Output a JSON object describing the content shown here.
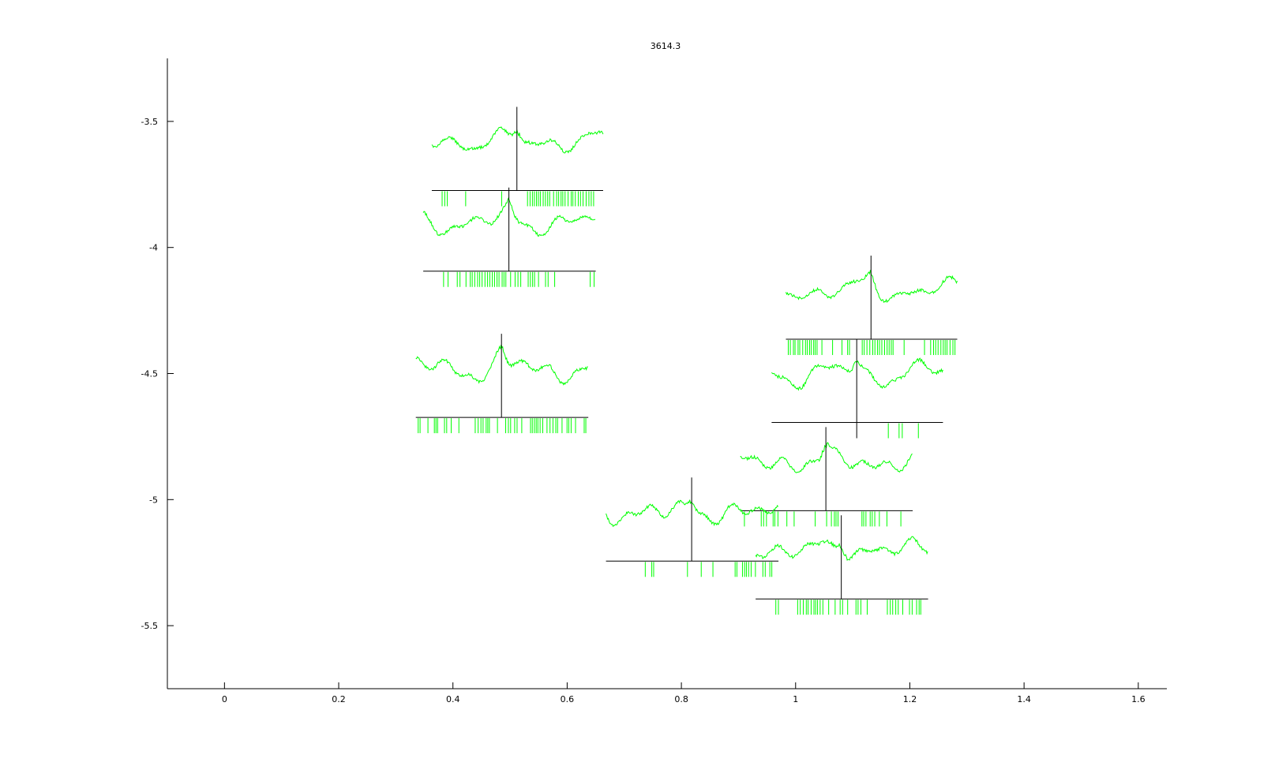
{
  "chart_data": {
    "type": "line",
    "title": "3614.3",
    "xlabel": "",
    "ylabel": "",
    "xlim": [
      -0.1,
      1.65
    ],
    "ylim": [
      -5.75,
      -3.25
    ],
    "x_ticks": [
      0,
      0.2,
      0.4,
      0.6,
      0.8,
      1,
      1.2,
      1.4,
      1.6
    ],
    "x_tick_labels": [
      "0",
      "0.2",
      "0.4",
      "0.6",
      "0.8",
      "1",
      "1.2",
      "1.4",
      "1.6"
    ],
    "y_ticks": [
      -3.5,
      -4,
      -4.5,
      -5,
      -5.5
    ],
    "y_tick_labels": [
      "-3.5",
      "-4",
      "-4.5",
      "-5",
      "-5.5"
    ],
    "grid": false,
    "colors": {
      "trace": "#00ff00",
      "axis": "#000000",
      "marker": "#000000"
    },
    "units": [
      {
        "x": 0.512,
        "y": -3.58,
        "x_start": 0.363,
        "x_end": 0.663,
        "spike_density": 0.55,
        "seed": 11
      },
      {
        "x": 0.498,
        "y": -3.9,
        "x_start": 0.348,
        "x_end": 0.65,
        "spike_density": 0.45,
        "seed": 23
      },
      {
        "x": 0.485,
        "y": -4.48,
        "x_start": 0.335,
        "x_end": 0.637,
        "spike_density": 0.45,
        "seed": 37
      },
      {
        "x": 1.132,
        "y": -4.17,
        "x_start": 0.983,
        "x_end": 1.283,
        "spike_density": 0.75,
        "seed": 41
      },
      {
        "x": 1.107,
        "y": -4.5,
        "x_start": 0.958,
        "x_end": 1.258,
        "spike_density": 0.04,
        "seed": 53
      },
      {
        "x": 1.053,
        "y": -4.85,
        "x_start": 0.903,
        "x_end": 1.205,
        "spike_density": 0.4,
        "seed": 67
      },
      {
        "x": 0.818,
        "y": -5.05,
        "x_start": 0.668,
        "x_end": 0.97,
        "spike_density": 0.4,
        "seed": 71
      },
      {
        "x": 1.08,
        "y": -5.2,
        "x_start": 0.93,
        "x_end": 1.232,
        "spike_density": 0.45,
        "seed": 89
      }
    ]
  }
}
